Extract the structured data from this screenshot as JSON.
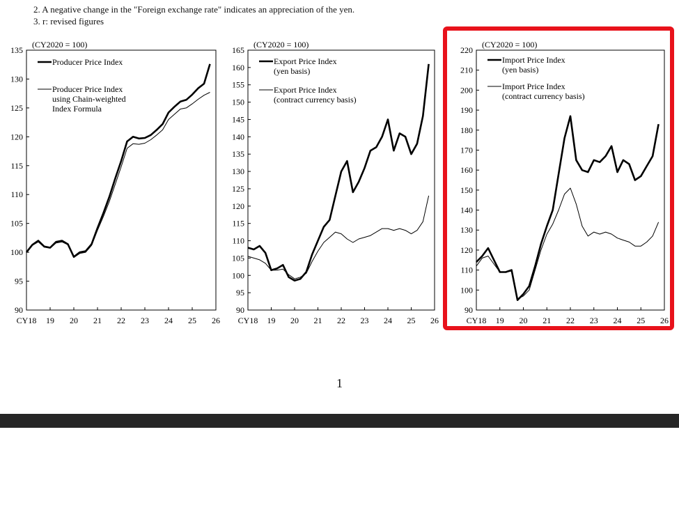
{
  "notes": {
    "line1": "2. A negative change in the \"Foreign exchange rate\" indicates an appreciation of the yen.",
    "line2": "3. r: revised figures"
  },
  "page_number": "1",
  "colors": {
    "highlight": "#e8121b",
    "line": "#000000",
    "viewer_bar": "#262626"
  },
  "chart_data": [
    {
      "id": "ppi",
      "type": "line",
      "unit_label": "(CY2020 = 100)",
      "x_ticks": [
        "CY18",
        "19",
        "20",
        "21",
        "22",
        "23",
        "24",
        "25",
        "26"
      ],
      "ylim": [
        90,
        135
      ],
      "y_ticks": [
        90,
        95,
        100,
        105,
        110,
        115,
        120,
        125,
        130,
        135
      ],
      "series": [
        {
          "name": "Producer Price Index",
          "style": "thick",
          "x": [
            2018.0,
            2018.25,
            2018.5,
            2018.75,
            2019.0,
            2019.25,
            2019.5,
            2019.75,
            2020.0,
            2020.25,
            2020.5,
            2020.75,
            2021.0,
            2021.25,
            2021.5,
            2021.75,
            2022.0,
            2022.25,
            2022.5,
            2022.75,
            2023.0,
            2023.25,
            2023.5,
            2023.75,
            2024.0,
            2024.25,
            2024.5,
            2024.75,
            2025.0,
            2025.25,
            2025.5,
            2025.75
          ],
          "y": [
            100.0,
            101.3,
            102.0,
            101.0,
            100.8,
            101.8,
            102.0,
            101.4,
            99.2,
            100.0,
            100.2,
            101.4,
            104.2,
            106.8,
            109.6,
            112.8,
            115.8,
            119.2,
            120.0,
            119.7,
            119.8,
            120.3,
            121.2,
            122.2,
            124.2,
            125.2,
            126.1,
            126.4,
            127.3,
            128.4,
            129.2,
            132.6
          ]
        },
        {
          "name": "Producer Price Index using Chain-weighted Index Formula",
          "style": "thin",
          "x": [
            2018.0,
            2018.25,
            2018.5,
            2018.75,
            2019.0,
            2019.25,
            2019.5,
            2019.75,
            2020.0,
            2020.25,
            2020.5,
            2020.75,
            2021.0,
            2021.25,
            2021.5,
            2021.75,
            2022.0,
            2022.25,
            2022.5,
            2022.75,
            2023.0,
            2023.25,
            2023.5,
            2023.75,
            2024.0,
            2024.25,
            2024.5,
            2024.75,
            2025.0,
            2025.25,
            2025.5,
            2025.75
          ],
          "y": [
            100.0,
            101.2,
            101.8,
            100.9,
            100.7,
            101.6,
            101.8,
            101.3,
            99.1,
            99.8,
            100.0,
            101.2,
            103.8,
            106.2,
            108.8,
            111.8,
            114.8,
            118.0,
            118.8,
            118.7,
            118.9,
            119.5,
            120.3,
            121.2,
            123.0,
            123.9,
            124.8,
            125.0,
            125.7,
            126.5,
            127.2,
            127.7
          ]
        }
      ]
    },
    {
      "id": "epi",
      "type": "line",
      "unit_label": "(CY2020 = 100)",
      "x_ticks": [
        "CY18",
        "19",
        "20",
        "21",
        "22",
        "23",
        "24",
        "25",
        "26"
      ],
      "ylim": [
        90,
        165
      ],
      "y_ticks": [
        90,
        95,
        100,
        105,
        110,
        115,
        120,
        125,
        130,
        135,
        140,
        145,
        150,
        155,
        160,
        165
      ],
      "series": [
        {
          "name": "Export Price Index (yen basis)",
          "name_lines": [
            "Export Price Index",
            "(yen basis)"
          ],
          "style": "thick",
          "x": [
            2018.0,
            2018.25,
            2018.5,
            2018.75,
            2019.0,
            2019.25,
            2019.5,
            2019.75,
            2020.0,
            2020.25,
            2020.5,
            2020.75,
            2021.0,
            2021.25,
            2021.5,
            2021.75,
            2022.0,
            2022.25,
            2022.5,
            2022.75,
            2023.0,
            2023.25,
            2023.5,
            2023.75,
            2024.0,
            2024.25,
            2024.5,
            2024.75,
            2025.0,
            2025.25,
            2025.5,
            2025.75
          ],
          "y": [
            108.0,
            107.5,
            108.5,
            106.5,
            101.5,
            102.0,
            103.0,
            99.5,
            98.5,
            99.0,
            101.0,
            106.0,
            110.0,
            114.0,
            116.0,
            123.0,
            130.0,
            133.0,
            124.0,
            127.0,
            131.0,
            136.0,
            137.0,
            140.0,
            145.0,
            136.0,
            141.0,
            140.0,
            135.0,
            138.0,
            146.0,
            161.0
          ]
        },
        {
          "name": "Export Price Index (contract currency basis)",
          "name_lines": [
            "Export Price Index",
            "(contract currency basis)"
          ],
          "style": "thin",
          "x": [
            2018.0,
            2018.25,
            2018.5,
            2018.75,
            2019.0,
            2019.25,
            2019.5,
            2019.75,
            2020.0,
            2020.25,
            2020.5,
            2020.75,
            2021.0,
            2021.25,
            2021.5,
            2021.75,
            2022.0,
            2022.25,
            2022.5,
            2022.75,
            2023.0,
            2023.25,
            2023.5,
            2023.75,
            2024.0,
            2024.25,
            2024.5,
            2024.75,
            2025.0,
            2025.25,
            2025.5,
            2025.75
          ],
          "y": [
            105.5,
            105.0,
            104.5,
            103.5,
            101.5,
            101.5,
            101.8,
            100.2,
            99.0,
            99.5,
            100.6,
            104.0,
            107.0,
            109.5,
            111.0,
            112.5,
            112.0,
            110.5,
            109.5,
            110.5,
            111.0,
            111.5,
            112.5,
            113.5,
            113.5,
            113.0,
            113.5,
            113.0,
            112.0,
            113.0,
            115.5,
            123.0
          ]
        }
      ]
    },
    {
      "id": "ipi",
      "type": "line",
      "unit_label": "(CY2020 = 100)",
      "x_ticks": [
        "CY18",
        "19",
        "20",
        "21",
        "22",
        "23",
        "24",
        "25",
        "26"
      ],
      "ylim": [
        90,
        220
      ],
      "y_ticks": [
        90,
        100,
        110,
        120,
        130,
        140,
        150,
        160,
        170,
        180,
        190,
        200,
        210,
        220
      ],
      "series": [
        {
          "name": "Import Price Index (yen basis)",
          "name_lines": [
            "Import Price Index",
            "(yen basis)"
          ],
          "style": "thick",
          "x": [
            2018.0,
            2018.25,
            2018.5,
            2018.75,
            2019.0,
            2019.25,
            2019.5,
            2019.75,
            2020.0,
            2020.25,
            2020.5,
            2020.75,
            2021.0,
            2021.25,
            2021.5,
            2021.75,
            2022.0,
            2022.25,
            2022.5,
            2022.75,
            2023.0,
            2023.25,
            2023.5,
            2023.75,
            2024.0,
            2024.25,
            2024.5,
            2024.75,
            2025.0,
            2025.25,
            2025.5,
            2025.75
          ],
          "y": [
            114.0,
            117.0,
            121.0,
            115.0,
            109.0,
            109.0,
            110.0,
            95.0,
            98.0,
            102.0,
            112.0,
            123.0,
            132.0,
            140.0,
            158.0,
            176.0,
            187.0,
            165.0,
            160.0,
            159.0,
            165.0,
            164.0,
            167.0,
            172.0,
            159.0,
            165.0,
            163.0,
            155.0,
            157.0,
            162.0,
            167.0,
            183.0
          ]
        },
        {
          "name": "Import Price Index (contract currency basis)",
          "name_lines": [
            "Import Price Index",
            "(contract currency basis)"
          ],
          "style": "thin",
          "x": [
            2018.0,
            2018.25,
            2018.5,
            2018.75,
            2019.0,
            2019.25,
            2019.5,
            2019.75,
            2020.0,
            2020.25,
            2020.5,
            2020.75,
            2021.0,
            2021.25,
            2021.5,
            2021.75,
            2022.0,
            2022.25,
            2022.5,
            2022.75,
            2023.0,
            2023.25,
            2023.5,
            2023.75,
            2024.0,
            2024.25,
            2024.5,
            2024.75,
            2025.0,
            2025.25,
            2025.5,
            2025.75
          ],
          "y": [
            112.0,
            116.0,
            117.0,
            113.0,
            109.0,
            109.0,
            109.5,
            95.5,
            97.0,
            100.0,
            110.0,
            120.0,
            128.0,
            133.0,
            140.0,
            148.0,
            151.0,
            143.0,
            132.0,
            127.0,
            129.0,
            128.0,
            129.0,
            128.0,
            126.0,
            125.0,
            124.0,
            122.0,
            122.0,
            124.0,
            127.0,
            134.0
          ]
        }
      ]
    }
  ]
}
